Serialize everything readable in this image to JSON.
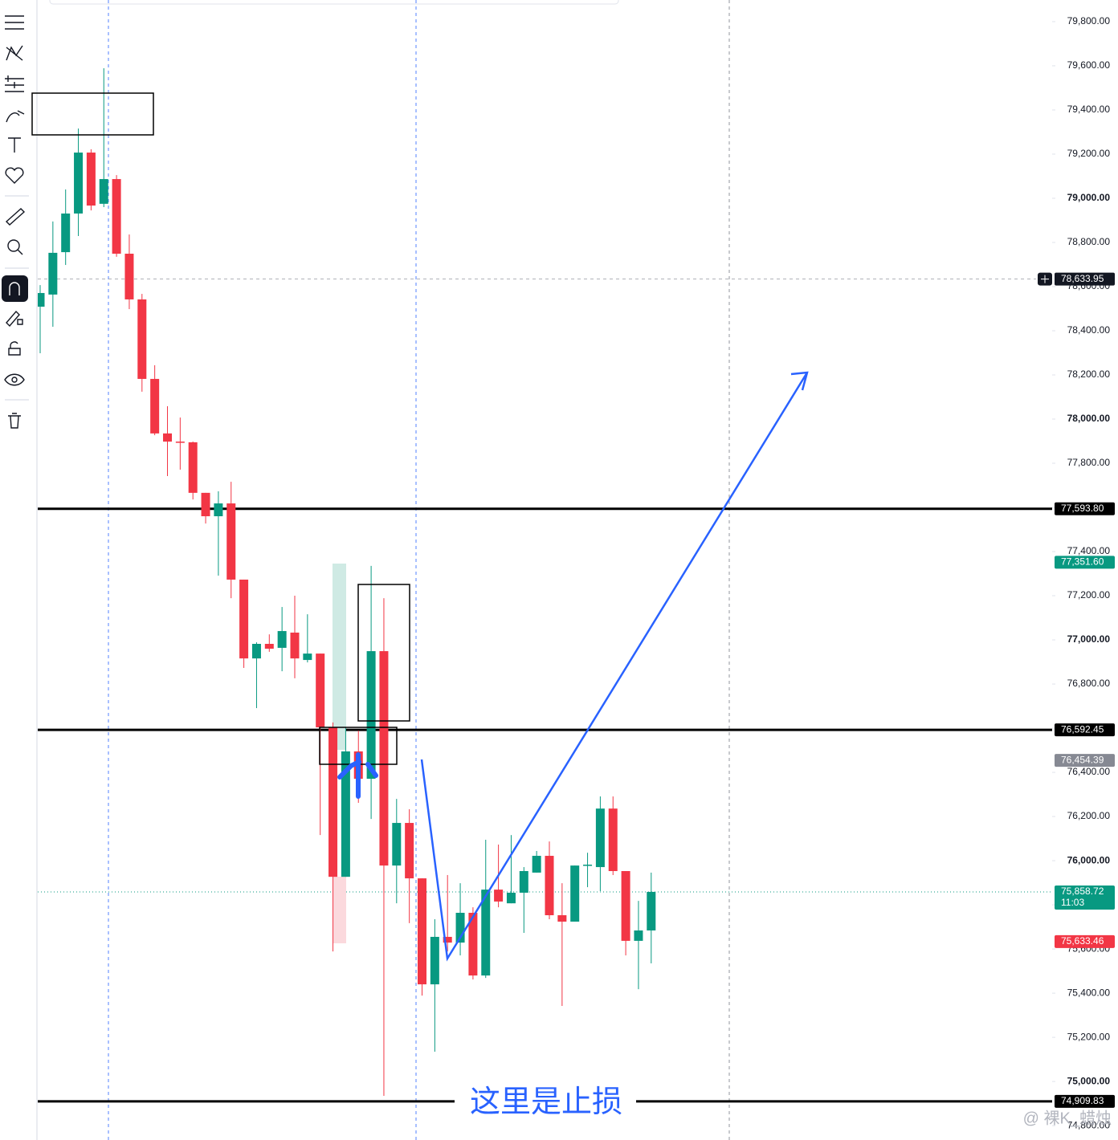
{
  "chart_data": {
    "type": "candlestick",
    "up_color": "#089981",
    "down_color": "#f23645",
    "open": [
      78509,
      78564,
      78756,
      78931,
      79207,
      78975,
      79087,
      78749,
      78542,
      78182,
      77935,
      77898,
      77895,
      77666,
      77560,
      77618,
      77273,
      76916,
      76982,
      76964,
      77033,
      76909,
      76938,
      76604,
      75927,
      76495,
      76371,
      76949,
      75978,
      76171,
      75920,
      75440,
      75655,
      75629,
      75764,
      75480,
      75869,
      75807,
      75855,
      75946,
      76022,
      75753,
      75724,
      75978,
      75971,
      76236,
      75953,
      75637,
      75684
    ],
    "high": [
      78607,
      78895,
      79040,
      79316,
      79222,
      79589,
      79105,
      78836,
      78567,
      78244,
      78058,
      78007,
      77898,
      77666,
      77673,
      77716,
      77273,
      76989,
      77025,
      77149,
      77200,
      77116,
      76938,
      76626,
      76604,
      76589,
      77335,
      77189,
      76280,
      76233,
      75920,
      75735,
      75935,
      75898,
      75789,
      76095,
      76073,
      76116,
      75971,
      76044,
      76087,
      75898,
      75978,
      76036,
      76291,
      76291,
      75953,
      75818,
      75946
    ],
    "low": [
      78298,
      78418,
      78698,
      78829,
      78945,
      78960,
      78735,
      78498,
      78124,
      77927,
      77742,
      77771,
      77636,
      77527,
      77291,
      77189,
      76873,
      76691,
      76946,
      76858,
      76826,
      76898,
      76116,
      75589,
      75927,
      76262,
      76189,
      74935,
      75807,
      75717,
      75389,
      75135,
      75589,
      75571,
      75462,
      75469,
      75789,
      75807,
      75673,
      75946,
      75735,
      75342,
      75724,
      75880,
      75862,
      75935,
      75571,
      75418,
      75535
    ],
    "close": [
      78571,
      78753,
      78931,
      79207,
      78967,
      79087,
      78749,
      78542,
      78182,
      77935,
      77898,
      77895,
      77666,
      77560,
      77618,
      77273,
      76916,
      76982,
      76960,
      77040,
      76916,
      76938,
      76604,
      75927,
      76495,
      76371,
      76949,
      75978,
      76171,
      75920,
      75440,
      75655,
      75629,
      75764,
      75480,
      75869,
      75815,
      75855,
      75953,
      76022,
      75753,
      75724,
      75978,
      75982,
      76236,
      75953,
      75637,
      75684,
      75858.72
    ],
    "ylim": [
      74735,
      79898
    ],
    "yticks": [
      {
        "value": 74800,
        "label": "74,800.00"
      },
      {
        "value": 75000,
        "label": "75,000.00"
      },
      {
        "value": 75200,
        "label": "75,200.00"
      },
      {
        "value": 75400,
        "label": "75,400.00"
      },
      {
        "value": 75600,
        "label": "75,600.00"
      },
      {
        "value": 75800,
        "label": "75,800.00"
      },
      {
        "value": 76000,
        "label": "76,000.00"
      },
      {
        "value": 76200,
        "label": "76,200.00"
      },
      {
        "value": 76400,
        "label": "76,400.00"
      },
      {
        "value": 76600,
        "label": "76,600.00"
      },
      {
        "value": 76800,
        "label": "76,800.00"
      },
      {
        "value": 77000,
        "label": "77,000.00"
      },
      {
        "value": 77200,
        "label": "77,200.00"
      },
      {
        "value": 77400,
        "label": "77,400.00"
      },
      {
        "value": 77600,
        "label": "77,600.00"
      },
      {
        "value": 77800,
        "label": "77,800.00"
      },
      {
        "value": 78000,
        "label": "78,000.00"
      },
      {
        "value": 78200,
        "label": "78,200.00"
      },
      {
        "value": 78400,
        "label": "78,400.00"
      },
      {
        "value": 78600,
        "label": "78,600.00"
      },
      {
        "value": 78800,
        "label": "78,800.00"
      },
      {
        "value": 79000,
        "label": "79,000.00"
      },
      {
        "value": 79200,
        "label": "79,200.00"
      },
      {
        "value": 79400,
        "label": "79,400.00"
      },
      {
        "value": 79600,
        "label": "79,600.00"
      },
      {
        "value": 79800,
        "label": "79,800.00"
      }
    ],
    "horizontal_lines": [
      77593.8,
      76592.45,
      74909.83
    ],
    "price_labels": [
      {
        "value": 78633.95,
        "label": "78,633.95",
        "color": "#131722"
      },
      {
        "value": 77593.8,
        "label": "77,593.80",
        "color": "#000000"
      },
      {
        "value": 77351.6,
        "label": "77,351.60",
        "color": "#089981"
      },
      {
        "value": 76592.45,
        "label": "76,592.45",
        "color": "#000000"
      },
      {
        "value": 76454.39,
        "label": "76,454.39",
        "color": "#868993"
      },
      {
        "value": 75858.72,
        "label": "75,858.72",
        "color": "#089981"
      },
      {
        "value": 75633.46,
        "label": "75,633.46",
        "color": "#f23645"
      },
      {
        "value": 74909.83,
        "label": "74,909.83",
        "color": "#000000"
      }
    ],
    "countdown": "11:03",
    "annotation": "这里是止损",
    "watermark": "@ 裸K_蜡烛"
  }
}
